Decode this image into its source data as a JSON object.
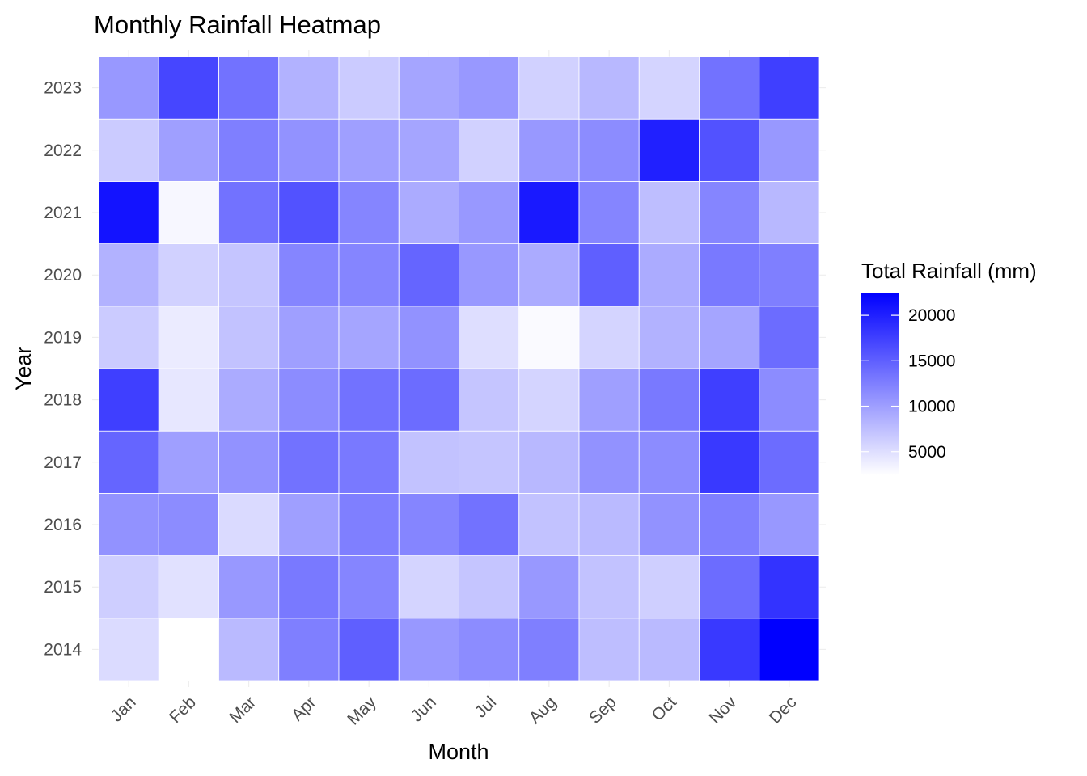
{
  "chart_data": {
    "type": "heatmap",
    "title": "Monthly Rainfall Heatmap",
    "xlabel": "Month",
    "ylabel": "Year",
    "x": [
      "Jan",
      "Feb",
      "Mar",
      "Apr",
      "May",
      "Jun",
      "Jul",
      "Aug",
      "Sep",
      "Oct",
      "Nov",
      "Dec"
    ],
    "y": [
      "2014",
      "2015",
      "2016",
      "2017",
      "2018",
      "2019",
      "2020",
      "2021",
      "2022",
      "2023"
    ],
    "values": [
      [
        5200,
        2400,
        7800,
        12500,
        15000,
        10500,
        11500,
        12500,
        7500,
        7800,
        18000,
        22500
      ],
      [
        6300,
        4800,
        10500,
        13000,
        12000,
        5800,
        7000,
        10500,
        7200,
        6200,
        14000,
        18500
      ],
      [
        11000,
        11500,
        5300,
        10000,
        12500,
        12000,
        13500,
        7200,
        7800,
        11000,
        12500,
        10500
      ],
      [
        14500,
        10000,
        11000,
        13500,
        13000,
        7200,
        7000,
        8000,
        11000,
        11500,
        18000,
        14000
      ],
      [
        17500,
        4300,
        9000,
        11500,
        13500,
        14000,
        7000,
        5800,
        10000,
        13000,
        17500,
        11500
      ],
      [
        6500,
        4000,
        7200,
        10000,
        9500,
        11000,
        5000,
        2800,
        5800,
        8500,
        9500,
        14000
      ],
      [
        8500,
        6000,
        7000,
        12000,
        12000,
        14500,
        10500,
        9000,
        15000,
        9000,
        13000,
        12500
      ],
      [
        21000,
        3000,
        13500,
        16000,
        12000,
        9000,
        10500,
        20500,
        12000,
        7500,
        12000,
        8000
      ],
      [
        6500,
        10000,
        12500,
        11000,
        10000,
        9500,
        6000,
        10500,
        11500,
        20000,
        16000,
        10500
      ],
      [
        10500,
        17000,
        13500,
        8500,
        6500,
        9500,
        10500,
        6000,
        8000,
        5800,
        13500,
        17500
      ]
    ],
    "legend": {
      "title": "Total Rainfall (mm)",
      "ticks": [
        5000,
        10000,
        15000,
        20000
      ],
      "range": [
        2400,
        22500
      ],
      "color_low": "#ffffff",
      "color_high": "#0000ff",
      "placement": "right"
    },
    "grid": true
  }
}
